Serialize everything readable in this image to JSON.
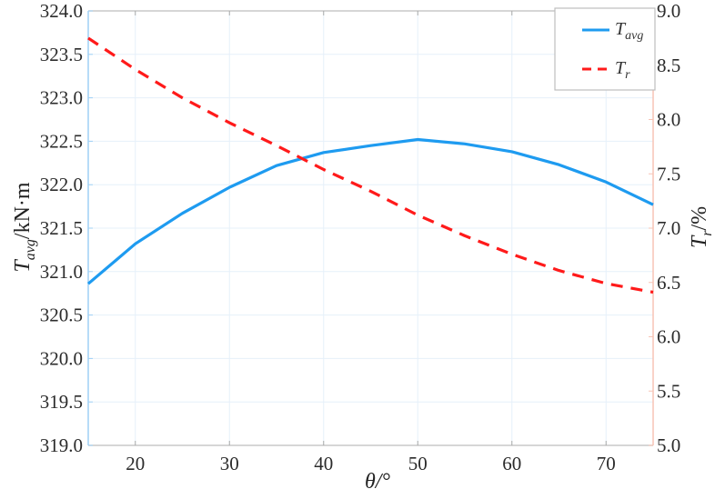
{
  "chart_data": {
    "type": "line",
    "title": "",
    "xlabel": "θ/°",
    "ylabel": "T_avg/kN·m",
    "y2label": "T_r/%",
    "x": [
      15,
      20,
      25,
      30,
      35,
      40,
      45,
      50,
      55,
      60,
      65,
      70,
      75
    ],
    "xlim": [
      15,
      75
    ],
    "xticks": [
      20,
      30,
      40,
      50,
      60,
      70
    ],
    "ylim": [
      319.0,
      324.0
    ],
    "yticks": [
      "319.0",
      "319.5",
      "320.0",
      "320.5",
      "321.0",
      "321.5",
      "322.0",
      "322.5",
      "323.0",
      "323.5",
      "324.0"
    ],
    "y2lim": [
      5.0,
      9.0
    ],
    "y2ticks": [
      "5.0",
      "5.5",
      "6.0",
      "6.5",
      "7.0",
      "7.5",
      "8.0",
      "8.5",
      "9.0"
    ],
    "grid": true,
    "legend_position": "upper right",
    "series": [
      {
        "name": "T_avg",
        "axis": "left",
        "color": "#1e9bf0",
        "style": "solid",
        "values": [
          320.86,
          321.32,
          321.67,
          321.97,
          322.22,
          322.37,
          322.45,
          322.52,
          322.47,
          322.38,
          322.23,
          322.03,
          321.77
        ]
      },
      {
        "name": "T_r",
        "axis": "right",
        "color": "#ff1a1a",
        "style": "dashed",
        "values": [
          8.75,
          8.46,
          8.2,
          7.97,
          7.76,
          7.54,
          7.34,
          7.12,
          6.93,
          6.76,
          6.61,
          6.49,
          6.41
        ]
      }
    ]
  },
  "labels": {
    "x_axis": "θ/°",
    "y_left_main": "T",
    "y_left_sub": "avg",
    "y_left_unit": "/kN·m",
    "y_right_main": "T",
    "y_right_sub": "r",
    "y_right_unit": "/%",
    "legend_1_main": "T",
    "legend_1_sub": "avg",
    "legend_2_main": "T",
    "legend_2_sub": "r"
  },
  "colors": {
    "left_axis": "#9fd0f5",
    "right_axis": "#f7c4b5",
    "grid": "#e6f0fa",
    "frame": "#c8c8c8"
  }
}
